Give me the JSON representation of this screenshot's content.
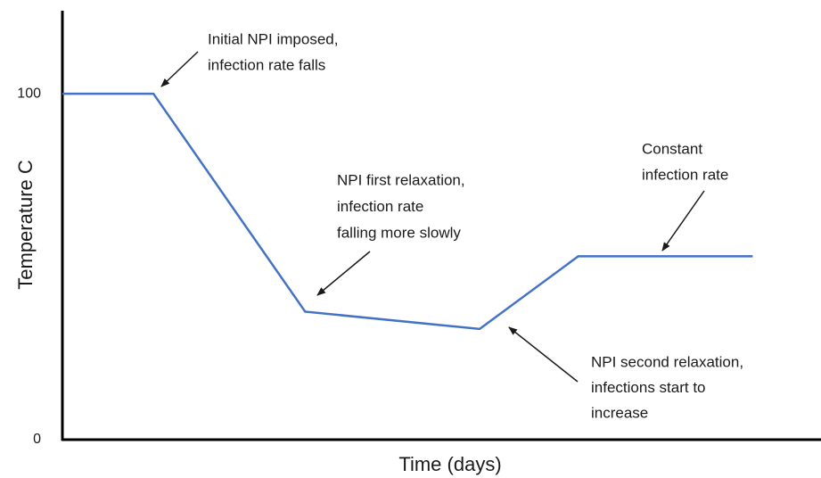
{
  "chart_data": {
    "type": "line",
    "x_label": "Time (days)",
    "y_label": "Temperature C",
    "x": [
      0,
      12,
      32,
      55,
      68,
      91
    ],
    "series": [
      {
        "color": "#4472c4",
        "values": [
          100,
          100,
          37,
          32,
          53,
          53
        ]
      }
    ],
    "xlim": [
      0,
      100
    ],
    "ylim": [
      0,
      124
    ],
    "yticks": [
      0,
      100
    ],
    "grid": false,
    "annotations": [
      {
        "lines": [
          "Initial NPI imposed,",
          "infection rate falls"
        ]
      },
      {
        "lines": [
          "NPI first relaxation,",
          "infection rate",
          "falling more slowly"
        ]
      },
      {
        "lines": [
          "Constant",
          "infection rate"
        ]
      },
      {
        "lines": [
          "NPI second relaxation,",
          "infections start to",
          "increase"
        ]
      }
    ]
  }
}
